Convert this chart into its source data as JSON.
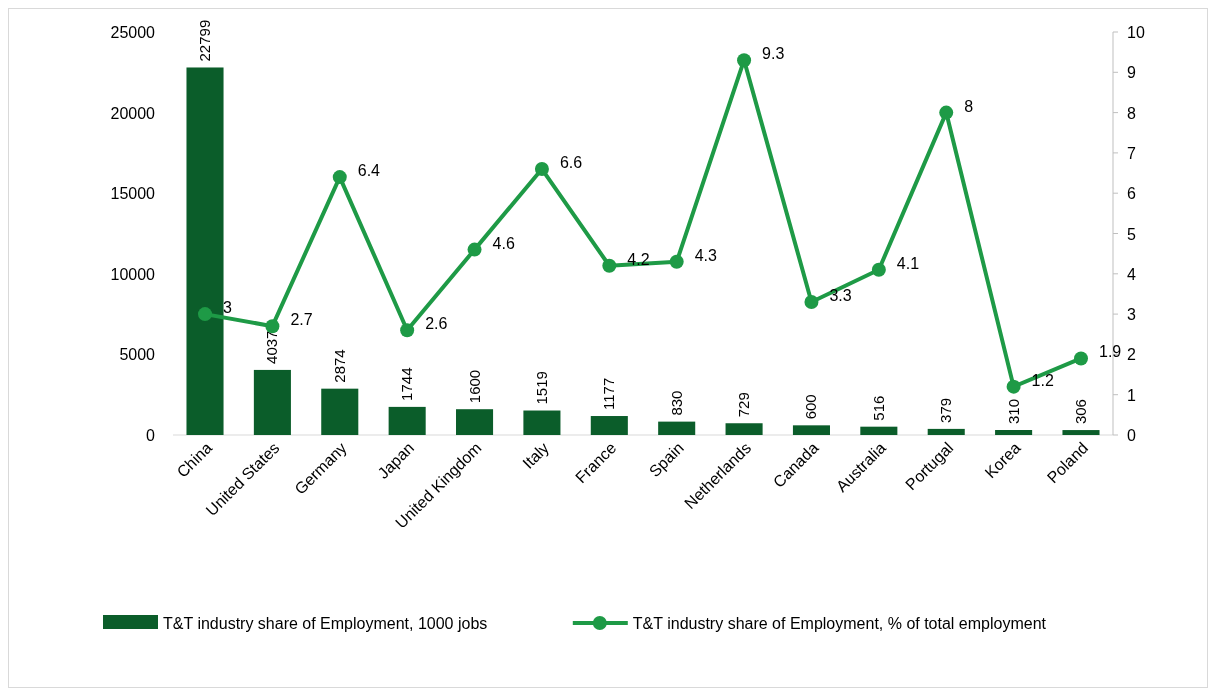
{
  "chart_data": {
    "type": "bar",
    "categories": [
      "China",
      "United States",
      "Germany",
      "Japan",
      "United Kingdom",
      "Italy",
      "France",
      "Spain",
      "Netherlands",
      "Canada",
      "Australia",
      "Portugal",
      "Korea",
      "Poland"
    ],
    "series": [
      {
        "name": "T&T industry share of Employment, 1000 jobs",
        "color": "#0b5d2a",
        "values": [
          22799,
          4037,
          2874,
          1744,
          1600,
          1519,
          1177,
          830,
          729,
          600,
          516,
          379,
          310,
          306
        ]
      },
      {
        "name": "T&T industry share of Employment, % of total employment",
        "type": "line",
        "axis": "y2",
        "color": "#1e9a46",
        "values": [
          3,
          2.7,
          6.4,
          2.6,
          4.6,
          6.6,
          4.2,
          4.3,
          9.3,
          3.3,
          4.1,
          8,
          1.2,
          1.9
        ]
      }
    ],
    "ylim": [
      0,
      25000
    ],
    "yticks": [
      0,
      5000,
      10000,
      15000,
      20000,
      25000
    ],
    "y2lim": [
      0,
      10
    ],
    "y2ticks": [
      0,
      1,
      2,
      3,
      4,
      5,
      6,
      7,
      8,
      9,
      10
    ],
    "data_labels": true,
    "legend": "bottom",
    "marker": "circle",
    "line_style": "solid"
  }
}
